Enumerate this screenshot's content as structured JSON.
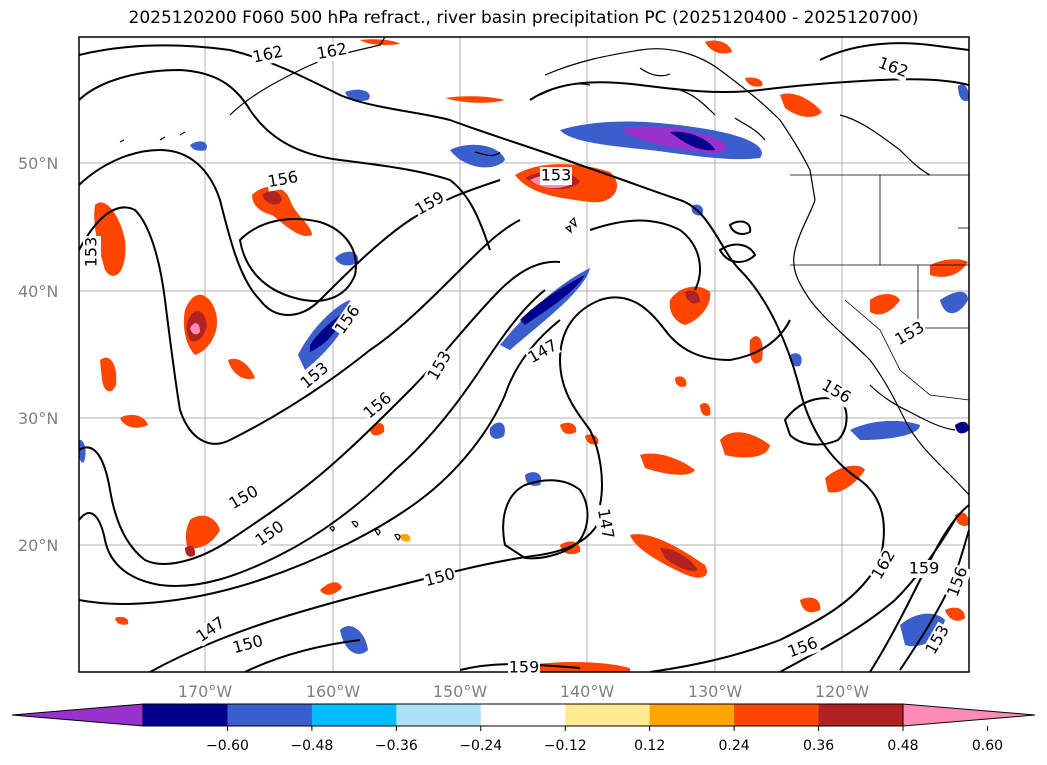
{
  "title": "2025120200 F060 500 hPa refract., river basin precipitation PC (2025120400 - 2025120700)",
  "lat_labels": [
    "50°N",
    "40°N",
    "30°N",
    "20°N"
  ],
  "lon_labels": [
    "170°W",
    "160°W",
    "150°W",
    "140°W",
    "130°W",
    "120°W"
  ],
  "contour_labels": [
    "162",
    "162",
    "162",
    "153",
    "156",
    "159",
    "153",
    "156",
    "153",
    "153",
    "156",
    "147",
    "153",
    "156",
    "150",
    "150",
    "150",
    "147",
    "147",
    "150",
    "159",
    "156",
    "162",
    "159",
    "156",
    "153"
  ],
  "colorbar": {
    "ticks": [
      "−0.60",
      "−0.48",
      "−0.36",
      "−0.24",
      "−0.12",
      "0.12",
      "0.24",
      "0.36",
      "0.48",
      "0.60"
    ],
    "colors": [
      "#9932CC",
      "#00008B",
      "#3A5FCD",
      "#00BFFF",
      "#ADE1FA",
      "#FFFFFF",
      "#FFE991",
      "#FFA500",
      "#FF4500",
      "#B22222",
      "#FF8CB4"
    ]
  }
}
